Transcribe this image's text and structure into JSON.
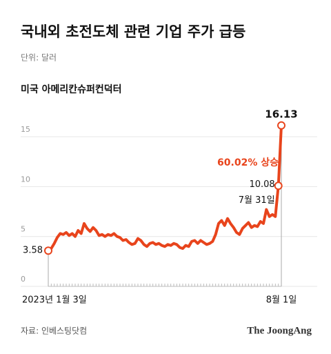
{
  "header": {
    "title": "국내외 초전도체 관련 기업 주가 급등",
    "subtitle": "단위: 달러"
  },
  "chart_data": {
    "type": "line",
    "title": "미국 아메리칸슈퍼컨덕터",
    "categories": [
      "2023년 1월 3일",
      null,
      null,
      null,
      null,
      null,
      null,
      null,
      null,
      null,
      null,
      null,
      null,
      null,
      null,
      null,
      null,
      null,
      null,
      null,
      null,
      null,
      null,
      null,
      null,
      null,
      null,
      null,
      null,
      null,
      null,
      null,
      null,
      null,
      null,
      null,
      null,
      null,
      null,
      null,
      null,
      null,
      null,
      null,
      null,
      null,
      null,
      null,
      null,
      null,
      null,
      null,
      null,
      null,
      null,
      null,
      null,
      null,
      null,
      null,
      null,
      null,
      null,
      null,
      null,
      null,
      null,
      null,
      null,
      null,
      null,
      null,
      null,
      null,
      null,
      null,
      null,
      "7월 31일",
      "8월 1일"
    ],
    "series": [
      {
        "name": "아메리칸슈퍼컨덕터",
        "color": "#e8441c",
        "values": [
          3.58,
          3.8,
          4.3,
          4.9,
          5.3,
          5.2,
          5.4,
          5.1,
          5.3,
          5.0,
          5.6,
          5.3,
          6.3,
          5.8,
          5.5,
          5.9,
          5.6,
          5.1,
          5.2,
          5.0,
          5.2,
          5.1,
          5.3,
          5.0,
          4.9,
          4.6,
          4.7,
          4.4,
          4.2,
          4.3,
          4.8,
          4.6,
          4.2,
          4.0,
          4.3,
          4.4,
          4.2,
          4.3,
          4.1,
          4.0,
          4.2,
          4.1,
          4.3,
          4.2,
          3.9,
          3.8,
          4.1,
          4.0,
          4.5,
          4.6,
          4.3,
          4.6,
          4.4,
          4.2,
          4.3,
          4.5,
          5.2,
          6.3,
          6.6,
          6.1,
          6.8,
          6.3,
          5.9,
          5.4,
          5.2,
          5.8,
          6.1,
          6.4,
          5.9,
          6.1,
          6.0,
          6.5,
          6.3,
          7.7,
          7.0,
          7.2,
          7.0,
          10.08,
          16.13
        ],
        "value_labels": [
          "3.58",
          null,
          null,
          null,
          null,
          null,
          null,
          null,
          null,
          null,
          null,
          null,
          null,
          null,
          null,
          null,
          null,
          null,
          null,
          null,
          null,
          null,
          null,
          null,
          null,
          null,
          null,
          null,
          null,
          null,
          null,
          null,
          null,
          null,
          null,
          null,
          null,
          null,
          null,
          null,
          null,
          null,
          null,
          null,
          null,
          null,
          null,
          null,
          null,
          null,
          null,
          null,
          null,
          null,
          null,
          null,
          null,
          null,
          null,
          null,
          null,
          null,
          null,
          null,
          null,
          null,
          null,
          null,
          null,
          null,
          null,
          null,
          null,
          null,
          null,
          null,
          null,
          "10.08",
          "16.13"
        ]
      }
    ],
    "annotation": "60.02% 상승",
    "ylim": [
      0,
      17.5
    ],
    "yticks": [
      0,
      5,
      10,
      15
    ],
    "grid": true
  },
  "footer": {
    "source": "자료: 인베스팅닷컴",
    "brand": "The JoongAng"
  }
}
